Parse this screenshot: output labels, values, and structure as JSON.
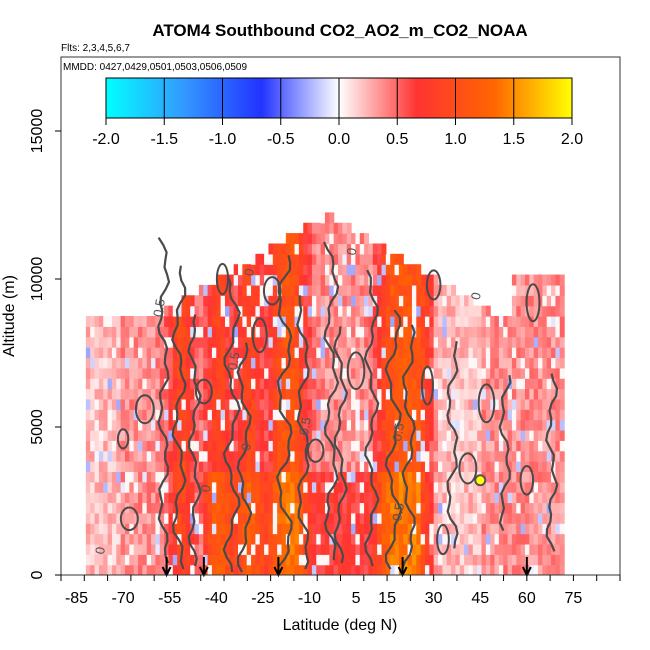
{
  "chart_data": {
    "type": "heatmap",
    "title": "ATOM4 Southbound CO2_AO2_m_CO2_NOAA",
    "flights_label": "Flts: 2,3,4,5,6,7",
    "dates_label": "MMDD: 0427,0429,0501,0503,0506,0509",
    "xlabel": "Latitude (deg N)",
    "ylabel": "Altitude (m)",
    "xlim": [
      -90,
      90
    ],
    "ylim": [
      0,
      17500
    ],
    "xticks": [
      -85,
      -70,
      -55,
      -40,
      -25,
      -10,
      5,
      15,
      30,
      45,
      60,
      75
    ],
    "xtick_labels": [
      "-85",
      "-70",
      "-55",
      "-40",
      "-25",
      "-10",
      "5",
      "15",
      "30",
      "45",
      "60",
      "75"
    ],
    "yticks": [
      0,
      5000,
      10000,
      15000
    ],
    "ytick_labels": [
      "0",
      "5000",
      "10000",
      "15000"
    ],
    "colorbar": {
      "min": -2.0,
      "max": 2.0,
      "ticks": [
        "-2.0",
        "-1.5",
        "-1.0",
        "-0.5",
        "0.0",
        "0.5",
        "1.0",
        "1.5",
        "2.0"
      ],
      "colors": [
        "#00ffff",
        "#3399ff",
        "#2233ff",
        "#ffffff",
        "#ff3333",
        "#ff6600",
        "#ffff00"
      ]
    },
    "data_extent": {
      "lat_range": [
        -82,
        72
      ],
      "alt_range": [
        0,
        12000
      ]
    },
    "contour_labels": [
      {
        "text": "0",
        "lat": -28,
        "alt": 10200
      },
      {
        "text": "0.5",
        "lat": -57,
        "alt": 9000
      },
      {
        "text": "0.5",
        "lat": -33,
        "alt": 7200
      },
      {
        "text": "0.5",
        "lat": -10,
        "alt": 5000
      },
      {
        "text": "0.5",
        "lat": 20,
        "alt": 4800
      },
      {
        "text": "0.5",
        "lat": 20,
        "alt": 2100
      },
      {
        "text": "0",
        "lat": -29,
        "alt": 4300
      },
      {
        "text": "0",
        "lat": -42,
        "alt": 2900
      },
      {
        "text": "0",
        "lat": -76,
        "alt": 800
      },
      {
        "text": "0",
        "lat": 45,
        "alt": 9400
      },
      {
        "text": "0",
        "lat": 5,
        "alt": 10900
      }
    ],
    "arrows_lat": [
      -56,
      -44,
      -20,
      20,
      60
    ],
    "hotspot": {
      "lat": 45,
      "alt": 3200,
      "value": 2.0
    }
  }
}
